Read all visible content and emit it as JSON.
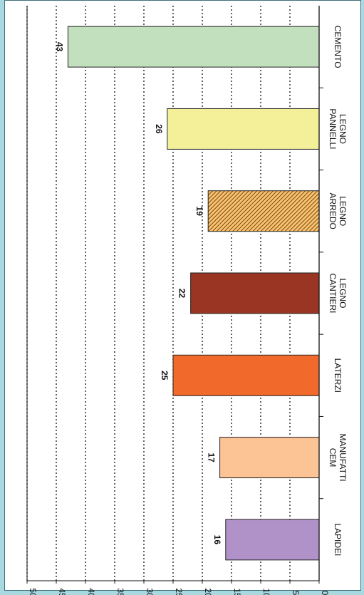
{
  "chart_data": {
    "type": "bar",
    "orientation": "rotated-90-clockwise",
    "categories": [
      "CEMENTO",
      "LEGNO\nPANNELLI",
      "LEGNO\nARREDO",
      "LEGNO\nCANTIERI",
      "LATERZI",
      "MANUFATTI\nCEM",
      "LAPIDEI"
    ],
    "values": [
      43,
      26,
      19,
      22,
      25,
      17,
      16
    ],
    "ylim": [
      0,
      50
    ],
    "yticks": [
      0,
      5,
      10,
      15,
      20,
      25,
      30,
      35,
      40,
      45,
      50
    ],
    "grid": true,
    "colors": [
      "#c2e0be",
      "#f4f09a",
      "#c7742f",
      "#9b3523",
      "#f26a2b",
      "#fcc394",
      "#b092c8"
    ],
    "patterns": [
      "solid",
      "solid",
      "hatched",
      "solid",
      "solid",
      "solid",
      "solid"
    ],
    "title": "",
    "xlabel": "",
    "ylabel": ""
  }
}
